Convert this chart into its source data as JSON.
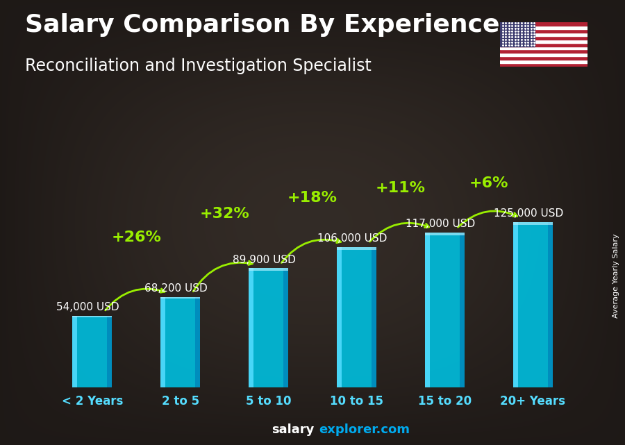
{
  "title": "Salary Comparison By Experience",
  "subtitle": "Reconciliation and Investigation Specialist",
  "ylabel": "Average Yearly Salary",
  "footer_bold": "salary",
  "footer_regular": "explorer.com",
  "categories": [
    "< 2 Years",
    "2 to 5",
    "5 to 10",
    "10 to 15",
    "15 to 20",
    "20+ Years"
  ],
  "values": [
    54000,
    68200,
    89900,
    106000,
    117000,
    125000
  ],
  "salaries": [
    "54,000 USD",
    "68,200 USD",
    "89,900 USD",
    "106,000 USD",
    "117,000 USD",
    "125,000 USD"
  ],
  "pct_changes": [
    null,
    "+26%",
    "+32%",
    "+18%",
    "+11%",
    "+6%"
  ],
  "bar_main_color": "#00bfdf",
  "bar_left_highlight": "#55ddff",
  "bar_right_shadow": "#0088bb",
  "bar_top_color": "#aaeeff",
  "title_color": "#ffffff",
  "subtitle_color": "#ffffff",
  "salary_label_color": "#ffffff",
  "pct_color": "#99ee00",
  "category_color": "#55ddff",
  "footer_bold_color": "#ffffff",
  "footer_regular_color": "#00aaee",
  "ylabel_color": "#ffffff",
  "ylim": [
    0,
    175000
  ],
  "title_fontsize": 26,
  "subtitle_fontsize": 17,
  "category_fontsize": 12,
  "salary_fontsize": 11,
  "pct_fontsize": 16,
  "bar_width": 0.45
}
